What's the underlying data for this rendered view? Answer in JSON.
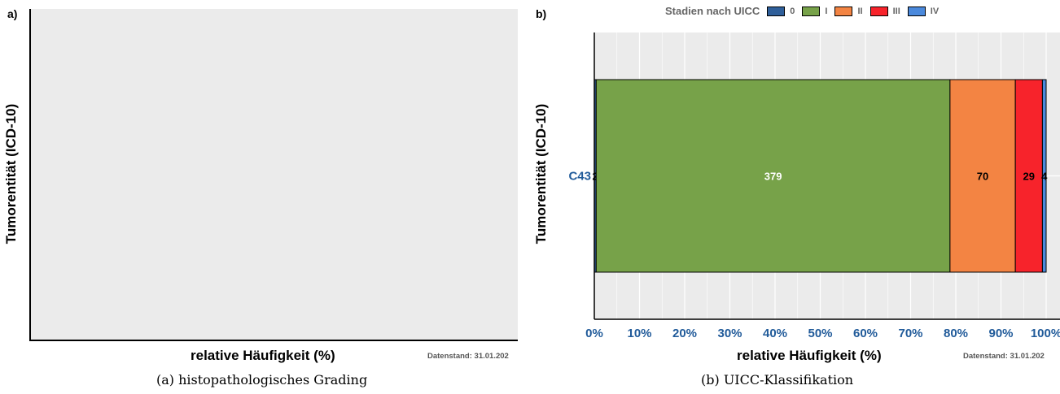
{
  "panel_a": {
    "tag": "a)",
    "ylabel": "Tumorentität (ICD-10)",
    "xlabel": "relative Häufigkeit (%)",
    "datestamp": "Datenstand: 31.01.202",
    "caption": "(a) histopathologisches Grading"
  },
  "panel_b": {
    "tag": "b)",
    "legend_title": "Stadien nach UICC",
    "ylabel": "Tumorentität (ICD-10)",
    "xlabel": "relative Häufigkeit (%)",
    "datestamp": "Datenstand: 31.01.202",
    "caption": "(b) UICC-Klassifikation"
  },
  "chart_data": [
    {
      "type": "bar",
      "title": "",
      "xlabel": "relative Häufigkeit (%)",
      "ylabel": "Tumorentität (ICD-10)",
      "categories": [],
      "series": [],
      "grid": false
    },
    {
      "type": "bar",
      "orientation": "horizontal",
      "stacked": "percent",
      "title": "",
      "xlabel": "relative Häufigkeit (%)",
      "ylabel": "Tumorentität (ICD-10)",
      "xlim": [
        0,
        100
      ],
      "x_ticks": [
        "0%",
        "10%",
        "20%",
        "30%",
        "40%",
        "50%",
        "60%",
        "70%",
        "80%",
        "90%",
        "100%"
      ],
      "categories": [
        "C43"
      ],
      "legend_title": "Stadien nach UICC",
      "legend_position": "top",
      "grid": true,
      "series": [
        {
          "name": "0",
          "values": [
            2
          ],
          "color": "#2f5f9a",
          "label_color": "#000000"
        },
        {
          "name": "I",
          "values": [
            379
          ],
          "color": "#77a249",
          "label_color": "#ffffff"
        },
        {
          "name": "II",
          "values": [
            70
          ],
          "color": "#f38443",
          "label_color": "#000000"
        },
        {
          "name": "III",
          "values": [
            29
          ],
          "color": "#f7232b",
          "label_color": "#000000"
        },
        {
          "name": "IV",
          "values": [
            4
          ],
          "color": "#4a89dc",
          "label_color": "#000000"
        }
      ],
      "tick_color": "#215b9a"
    }
  ]
}
